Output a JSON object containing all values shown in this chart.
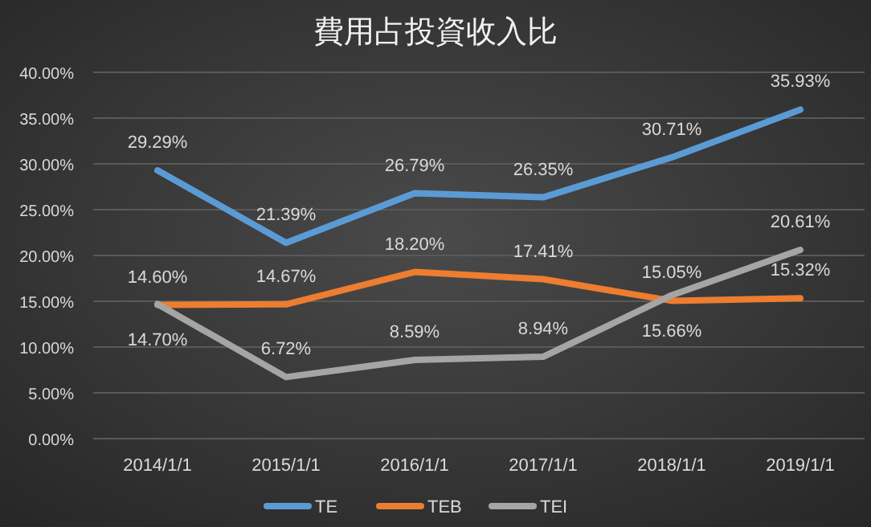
{
  "chart_data": {
    "type": "line",
    "title": "費用占投資收入比",
    "categories": [
      "2014/1/1",
      "2015/1/1",
      "2016/1/1",
      "2017/1/1",
      "2018/1/1",
      "2019/1/1"
    ],
    "series": [
      {
        "name": "TE",
        "color": "#5b9bd5",
        "values": [
          29.29,
          21.39,
          26.79,
          26.35,
          30.71,
          35.93
        ],
        "value_labels": [
          "29.29%",
          "21.39%",
          "26.79%",
          "26.35%",
          "30.71%",
          "35.93%"
        ]
      },
      {
        "name": "TEB",
        "color": "#ed7d31",
        "values": [
          14.6,
          14.67,
          18.2,
          17.41,
          15.05,
          15.32
        ],
        "value_labels": [
          "14.60%",
          "14.67%",
          "18.20%",
          "17.41%",
          "15.05%",
          "15.32%"
        ]
      },
      {
        "name": "TEI",
        "color": "#a5a5a5",
        "values": [
          14.7,
          6.72,
          8.59,
          8.94,
          15.66,
          20.61
        ],
        "value_labels": [
          "14.70%",
          "6.72%",
          "8.59%",
          "8.94%",
          "15.66%",
          "20.61%"
        ]
      }
    ],
    "ylim": [
      0,
      40
    ],
    "yticks": [
      {
        "value": 0,
        "label": "0.00%"
      },
      {
        "value": 5,
        "label": "5.00%"
      },
      {
        "value": 10,
        "label": "10.00%"
      },
      {
        "value": 15,
        "label": "15.00%"
      },
      {
        "value": 20,
        "label": "20.00%"
      },
      {
        "value": 25,
        "label": "25.00%"
      },
      {
        "value": 30,
        "label": "30.00%"
      },
      {
        "value": 35,
        "label": "35.00%"
      },
      {
        "value": 40,
        "label": "40.00%"
      }
    ],
    "grid": "y",
    "legend": "bottom",
    "marker": "none",
    "line_style": "solid"
  }
}
